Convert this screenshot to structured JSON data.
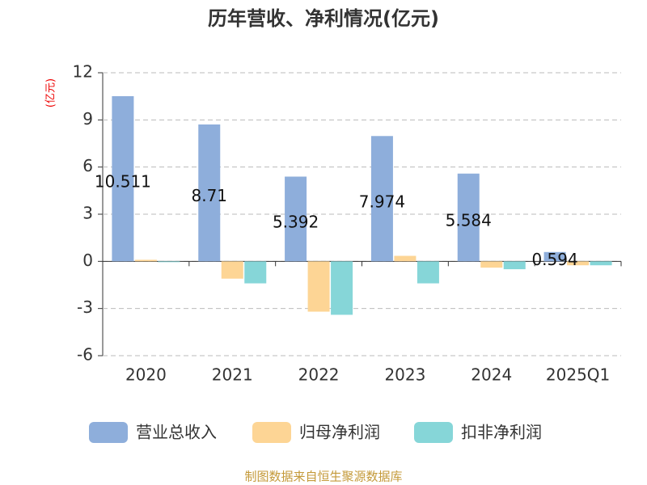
{
  "chart_data": {
    "type": "bar",
    "title": "历年营收、净利情况(亿元)",
    "y_label": "(亿元)",
    "categories": [
      "2020",
      "2021",
      "2022",
      "2023",
      "2024",
      "2025Q1"
    ],
    "series": [
      {
        "name": "营业总收入",
        "color": "#8eaedb",
        "values": [
          10.511,
          8.71,
          5.392,
          7.974,
          5.584,
          0.594
        ],
        "labels": true
      },
      {
        "name": "归母净利润",
        "color": "#fdd595",
        "values": [
          0.1,
          -1.1,
          -3.2,
          0.35,
          -0.4,
          -0.25
        ]
      },
      {
        "name": "扣非净利润",
        "color": "#86d6d8",
        "values": [
          -0.05,
          -1.4,
          -3.4,
          -1.4,
          -0.5,
          -0.25
        ]
      }
    ],
    "ylim": [
      -6,
      12
    ],
    "yticks": [
      -6,
      -3,
      0,
      3,
      6,
      9,
      12
    ],
    "grid": true,
    "source": "制图数据来自恒生聚源数据库"
  }
}
